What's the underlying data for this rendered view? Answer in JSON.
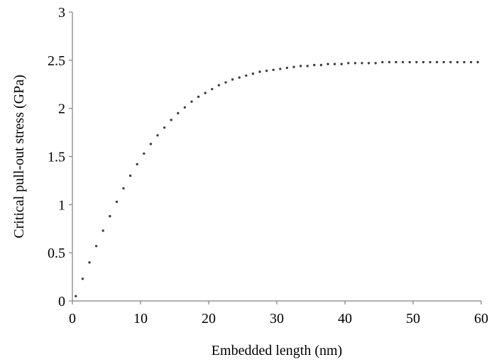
{
  "chart_data": {
    "type": "scatter",
    "title": "",
    "xlabel": "Embedded length (nm)",
    "ylabel": "Critical pull-out stress (GPa)",
    "xlim": [
      0,
      60
    ],
    "ylim": [
      0,
      3
    ],
    "x_ticks": [
      0,
      10,
      20,
      30,
      40,
      50,
      60
    ],
    "y_ticks": [
      0,
      0.5,
      1,
      1.5,
      2,
      2.5,
      3
    ],
    "x_tick_labels": [
      "0",
      "10",
      "20",
      "30",
      "40",
      "50",
      "60"
    ],
    "y_tick_labels": [
      "0",
      "0.5",
      "1",
      "1.5",
      "2",
      "2.5",
      "3"
    ],
    "grid": false,
    "legend": "none",
    "marker_color": "#404040",
    "axis_color": "#808080",
    "series": [
      {
        "x": [
          0.5,
          1.5,
          2.5,
          3.5,
          4.5,
          5.5,
          6.5,
          7.5,
          8.5,
          9.5,
          10.5,
          11.5,
          12.5,
          13.5,
          14.5,
          15.5,
          16.5,
          17.5,
          18.5,
          19.5,
          20.5,
          21.5,
          22.5,
          23.5,
          24.5,
          25.5,
          26.5,
          27.5,
          28.5,
          29.5,
          30.5,
          31.5,
          32.5,
          33.5,
          34.5,
          35.5,
          36.5,
          37.5,
          38.5,
          39.5,
          40.5,
          41.5,
          42.5,
          43.5,
          44.5,
          45.5,
          46.5,
          47.5,
          48.5,
          49.5,
          50.5,
          51.5,
          52.5,
          53.5,
          54.5,
          55.5,
          56.5,
          57.5,
          58.5,
          59.5
        ],
        "y": [
          0.05,
          0.23,
          0.4,
          0.57,
          0.73,
          0.88,
          1.03,
          1.17,
          1.3,
          1.42,
          1.53,
          1.63,
          1.72,
          1.8,
          1.88,
          1.95,
          2.01,
          2.07,
          2.12,
          2.16,
          2.2,
          2.24,
          2.27,
          2.3,
          2.32,
          2.34,
          2.36,
          2.38,
          2.39,
          2.4,
          2.41,
          2.42,
          2.43,
          2.44,
          2.44,
          2.45,
          2.45,
          2.46,
          2.46,
          2.46,
          2.47,
          2.47,
          2.47,
          2.47,
          2.47,
          2.48,
          2.48,
          2.48,
          2.48,
          2.48,
          2.48,
          2.48,
          2.48,
          2.48,
          2.48,
          2.48,
          2.48,
          2.48,
          2.48,
          2.48
        ]
      }
    ]
  }
}
